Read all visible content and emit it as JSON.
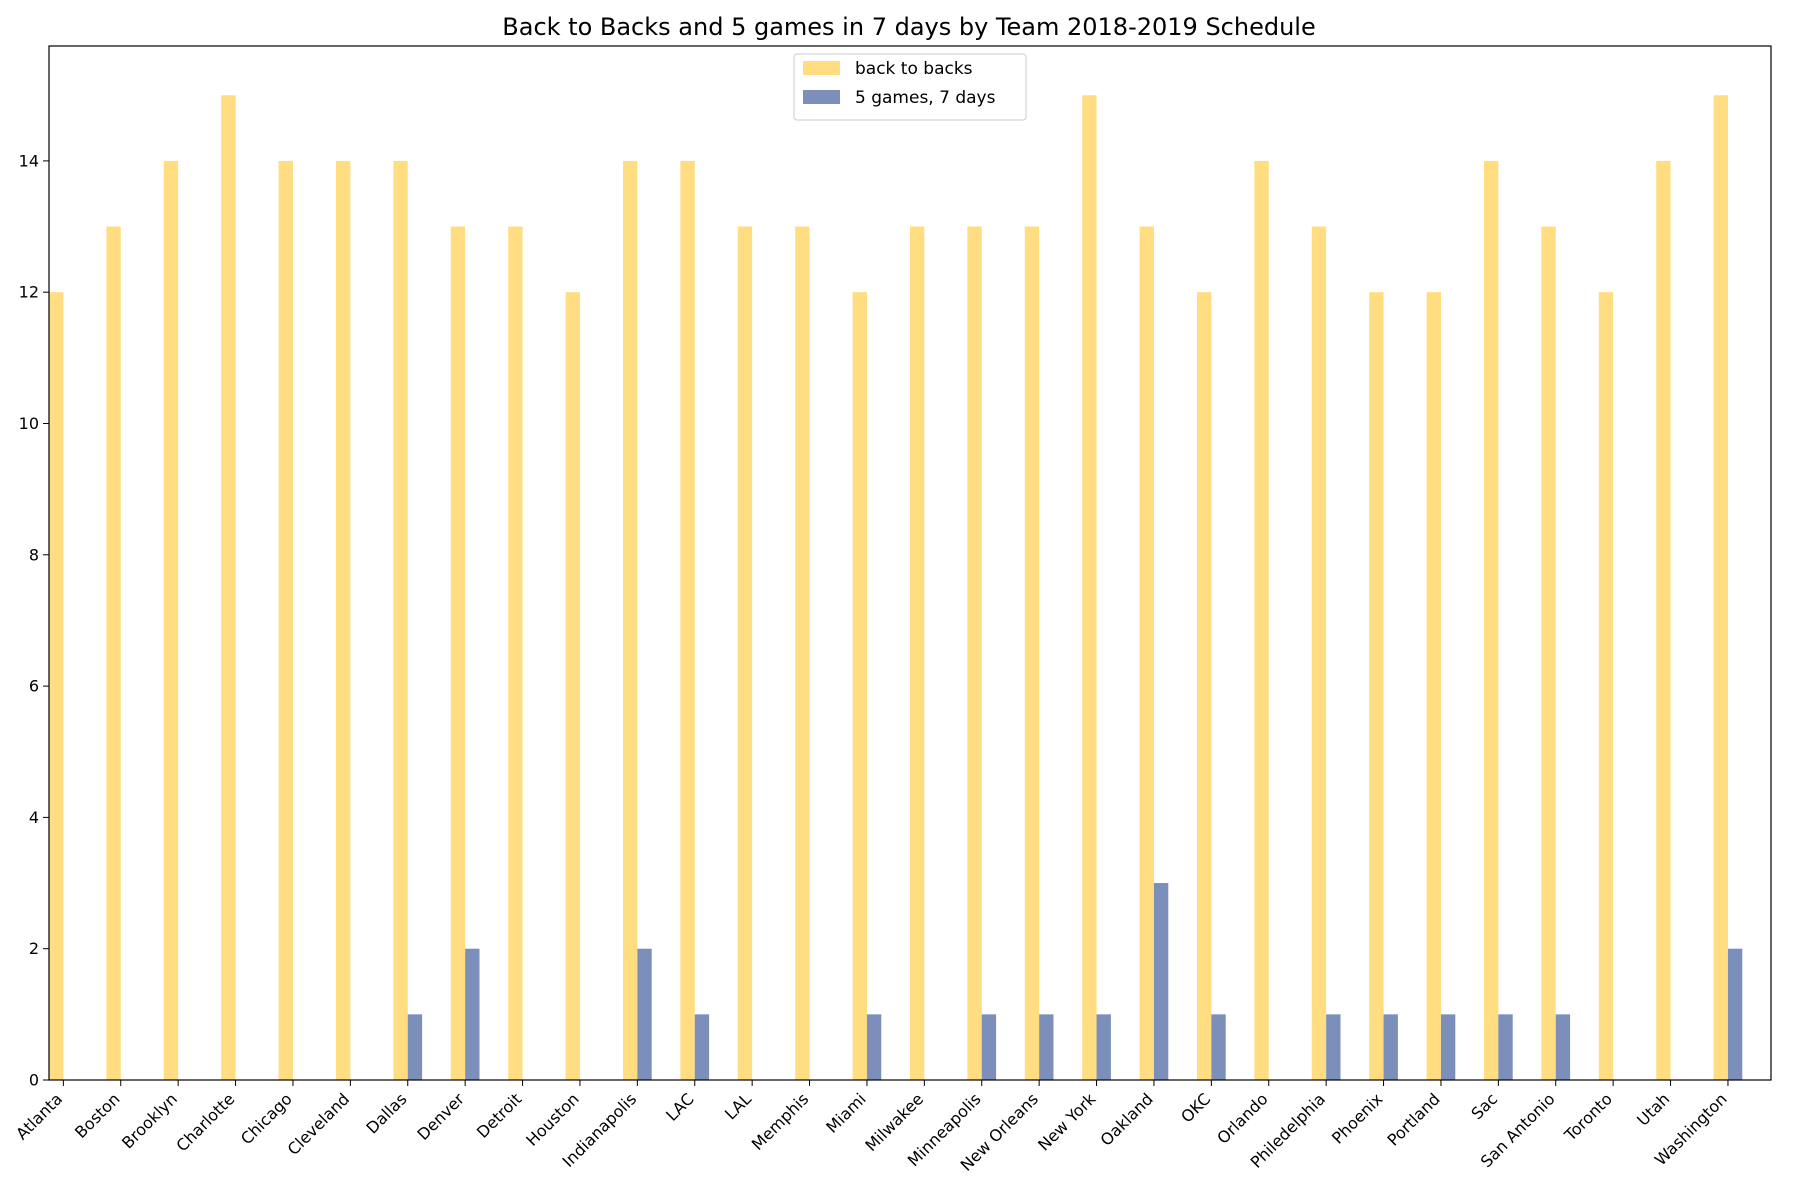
{
  "chart_data": {
    "type": "bar",
    "title": "Back to Backs and 5 games in 7 days by Team 2018-2019 Schedule",
    "xlabel": "",
    "ylabel": "",
    "ylim": [
      0,
      15.75
    ],
    "yticks": [
      0,
      2,
      4,
      6,
      8,
      10,
      12,
      14
    ],
    "grid": false,
    "legend_position": "top-center",
    "categories": [
      "Atlanta",
      "Boston",
      "Brooklyn",
      "Charlotte",
      "Chicago",
      "Cleveland",
      "Dallas",
      "Denver",
      "Detroit",
      "Houston",
      "Indianapolis",
      "LAC",
      "LAL",
      "Memphis",
      "Miami",
      "Milwakee",
      "Minneapolis",
      "New Orleans",
      "New York",
      "Oakland",
      "OKC",
      "Orlando",
      "Philedelphia",
      "Phoenix",
      "Portland",
      "Sac",
      "San Antonio",
      "Toronto",
      "Utah",
      "Washington"
    ],
    "series": [
      {
        "name": "back to backs",
        "color": "#ffdd80",
        "values": [
          12,
          13,
          14,
          15,
          14,
          14,
          14,
          13,
          13,
          12,
          14,
          14,
          13,
          13,
          12,
          13,
          13,
          13,
          15,
          13,
          12,
          14,
          13,
          12,
          12,
          14,
          13,
          12,
          14,
          15
        ]
      },
      {
        "name": "5 games, 7 days",
        "color": "#7b8fba",
        "values": [
          0,
          0,
          0,
          0,
          0,
          0,
          1,
          2,
          0,
          0,
          2,
          1,
          0,
          0,
          1,
          0,
          1,
          1,
          1,
          3,
          1,
          0,
          1,
          1,
          1,
          1,
          1,
          0,
          0,
          2
        ]
      }
    ]
  }
}
